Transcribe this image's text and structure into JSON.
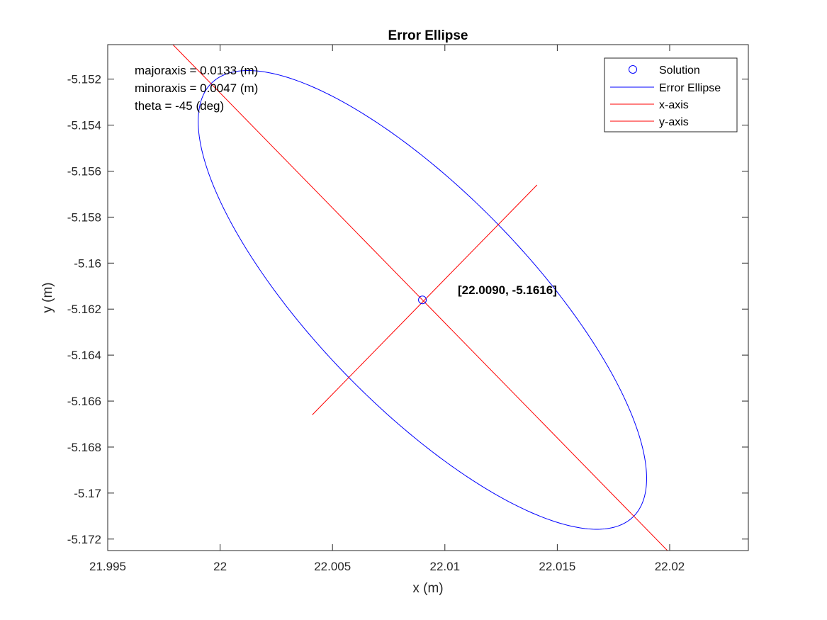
{
  "chart_data": {
    "type": "scatter",
    "title": "Error Ellipse",
    "xlabel": "x (m)",
    "ylabel": "y (m)",
    "xlim": [
      21.995,
      22.0235
    ],
    "ylim": [
      -5.1725,
      -5.1505
    ],
    "x_ticks": [
      21.995,
      22,
      22.005,
      22.01,
      22.015,
      22.02
    ],
    "x_tick_labels": [
      "21.995",
      "22",
      "22.005",
      "22.01",
      "22.015",
      "22.02"
    ],
    "y_ticks": [
      -5.152,
      -5.154,
      -5.156,
      -5.158,
      -5.16,
      -5.162,
      -5.164,
      -5.166,
      -5.168,
      -5.17,
      -5.172
    ],
    "y_tick_labels": [
      "-5.152",
      "-5.154",
      "-5.156",
      "-5.158",
      "-5.16",
      "-5.162",
      "-5.164",
      "-5.166",
      "-5.168",
      "-5.17",
      "-5.172"
    ],
    "grid": false,
    "legend_position": "top-right",
    "series": [
      {
        "name": "Solution",
        "kind": "marker",
        "marker": "circle",
        "color": "#0000ff",
        "x": [
          22.009
        ],
        "y": [
          -5.1616
        ]
      },
      {
        "name": "Error Ellipse",
        "kind": "ellipse",
        "color": "#0000ff",
        "center": [
          22.009,
          -5.1616
        ],
        "semi_major": 0.0133,
        "semi_minor": 0.0047,
        "theta_deg": -45
      },
      {
        "name": "x-axis",
        "kind": "line",
        "color": "#ff0000",
        "x": [
          21.9975,
          22.0205
        ],
        "y": [
          -5.1501,
          -5.1731
        ]
      },
      {
        "name": "y-axis",
        "kind": "line",
        "color": "#ff0000",
        "x": [
          22.0041,
          22.0141
        ],
        "y": [
          -5.1666,
          -5.1566
        ]
      }
    ],
    "annotations": [
      "majoraxis = 0.0133 (m)",
      "minoraxis = 0.0047 (m)",
      "theta = -45 (deg)"
    ],
    "point_label": "[22.0090, -5.1616]"
  }
}
